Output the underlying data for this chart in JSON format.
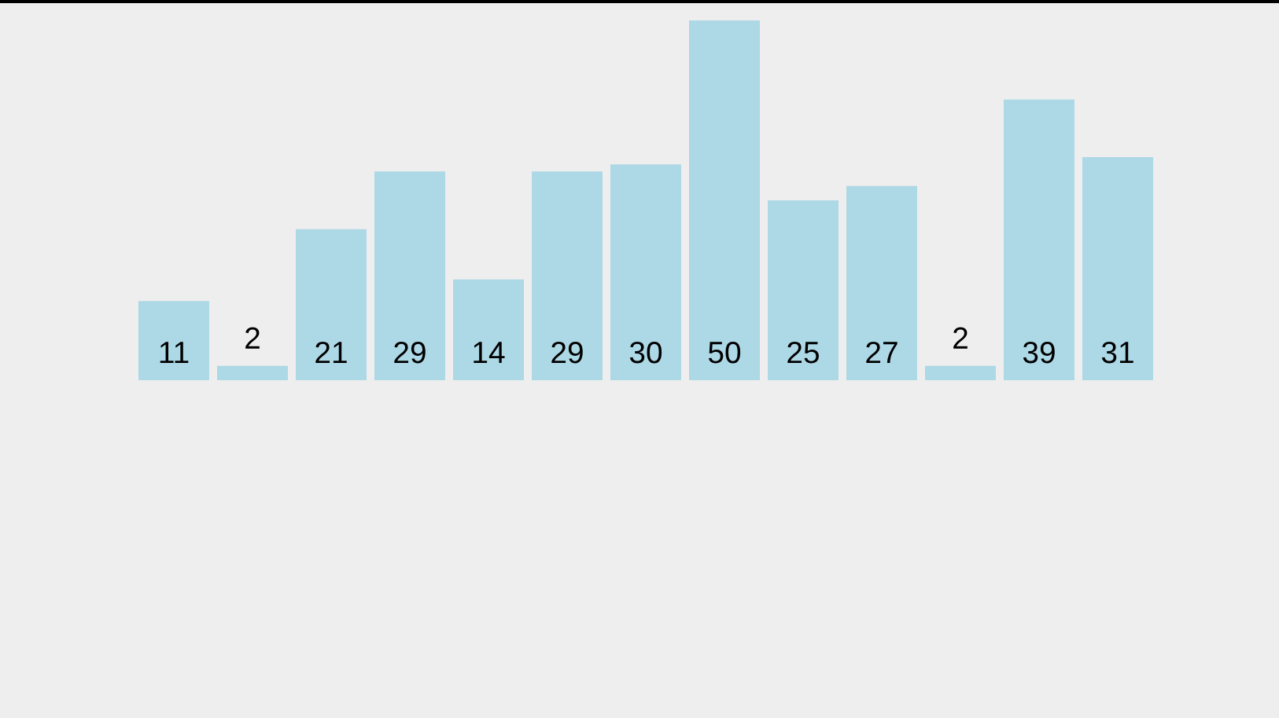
{
  "chart_data": {
    "type": "bar",
    "categories": [
      null,
      null,
      null,
      null,
      null,
      null,
      null,
      null,
      null,
      null,
      null,
      null,
      null
    ],
    "values": [
      11,
      2,
      21,
      29,
      14,
      29,
      30,
      50,
      25,
      27,
      2,
      39,
      31
    ],
    "color": "#add8e6",
    "data_labels": true
  }
}
